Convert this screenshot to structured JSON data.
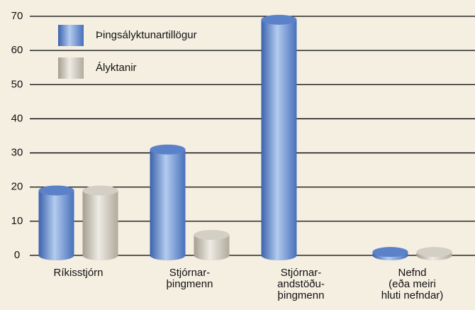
{
  "chart_data": {
    "type": "bar",
    "categories": [
      [
        "Ríkisstjórn"
      ],
      [
        "Stjórnar-",
        "þingmenn"
      ],
      [
        "Stjórnar-",
        "andstöðu-",
        "þingmenn"
      ],
      [
        "Nefnd",
        "(eða meiri",
        "hluti nefndar)"
      ]
    ],
    "series": [
      {
        "name": "Þingsályktunartillögur",
        "color": "#5b82c8",
        "values": [
          19,
          31,
          69,
          1
        ]
      },
      {
        "name": "Ályktanir",
        "color": "#d4cfc4",
        "values": [
          19,
          6,
          null,
          1
        ]
      }
    ],
    "ylim": [
      0,
      70
    ],
    "yticks": [
      0,
      10,
      20,
      30,
      40,
      50,
      60,
      70
    ],
    "grid": true,
    "legend": "upper left"
  }
}
